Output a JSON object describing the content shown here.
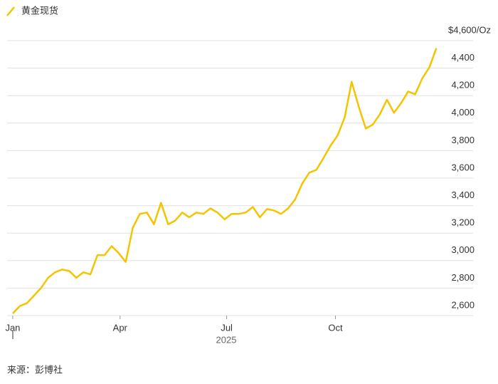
{
  "chart_data": {
    "type": "line",
    "legend": "黄金现货",
    "series": [
      {
        "name": "黄金现货",
        "color": "#f5c400",
        "values": [
          2615,
          2670,
          2690,
          2745,
          2800,
          2875,
          2915,
          2935,
          2925,
          2875,
          2915,
          2900,
          3040,
          3040,
          3105,
          3055,
          2990,
          3240,
          3340,
          3350,
          3265,
          3420,
          3265,
          3290,
          3350,
          3315,
          3350,
          3340,
          3380,
          3350,
          3300,
          3340,
          3340,
          3350,
          3390,
          3315,
          3375,
          3365,
          3340,
          3380,
          3445,
          3560,
          3640,
          3660,
          3745,
          3835,
          3910,
          4040,
          4300,
          4120,
          3960,
          3990,
          4065,
          4170,
          4075,
          4145,
          4230,
          4210,
          4325,
          4405,
          4545
        ]
      }
    ],
    "xlim": [
      -0.8,
      65.2
    ],
    "xticks": [
      {
        "value": 0,
        "label": "Jan"
      },
      {
        "value": 15.2,
        "label": "Apr"
      },
      {
        "value": 30.3,
        "label": "Jul"
      },
      {
        "value": 45.7,
        "label": "Oct"
      }
    ],
    "year_label": "2025",
    "ylim": [
      2600,
      4600
    ],
    "yticks": [
      {
        "value": 2600,
        "label": "2,600"
      },
      {
        "value": 2800,
        "label": "2,800"
      },
      {
        "value": 3000,
        "label": "3,000"
      },
      {
        "value": 3200,
        "label": "3,200"
      },
      {
        "value": 3400,
        "label": "3,400"
      },
      {
        "value": 3600,
        "label": "3,600"
      },
      {
        "value": 3800,
        "label": "3,800"
      },
      {
        "value": 4000,
        "label": "4,000"
      },
      {
        "value": 4200,
        "label": "4,200"
      },
      {
        "value": 4400,
        "label": "4,400"
      },
      {
        "value": 4600,
        "label": "$4,600/Oz"
      }
    ],
    "grid": true,
    "source": "来源：彭博社"
  }
}
